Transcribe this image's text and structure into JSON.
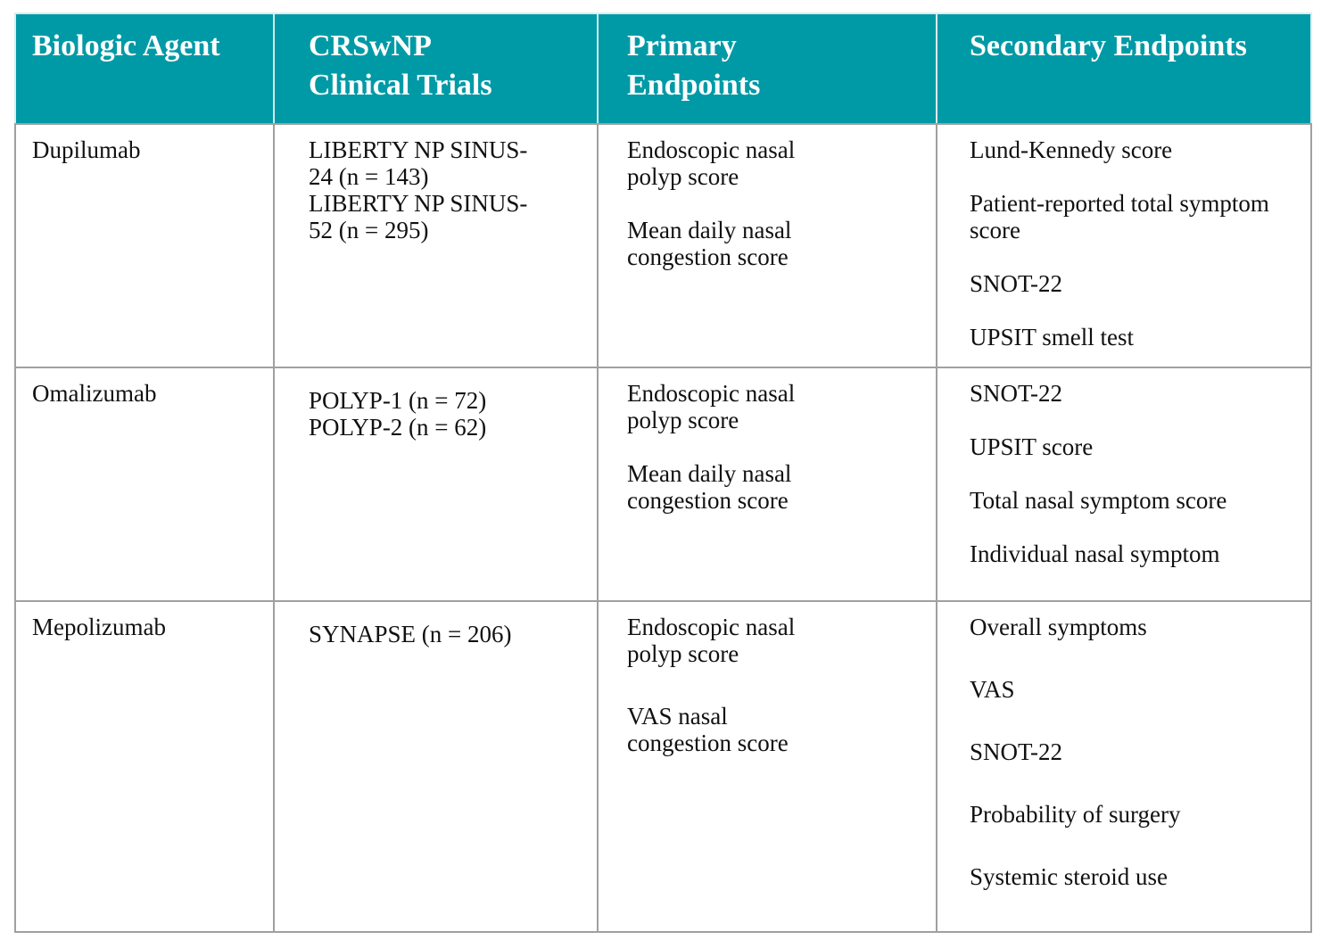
{
  "table": {
    "header": [
      "Biologic Agent",
      "CRSwNP Clinical Trials",
      "Primary Endpoints",
      "Secondary Endpoints"
    ],
    "rows": [
      {
        "agent": "Dupilumab",
        "trials": [
          "LIBERTY NP SINUS-24 (n = 143)",
          "LIBERTY NP SINUS-52 (n = 295)"
        ],
        "primary": [
          "Endoscopic nasal polyp score",
          "Mean daily nasal congestion score"
        ],
        "secondary": [
          "Lund-Kennedy score",
          "Patient-reported total symptom score",
          "SNOT-22",
          "UPSIT smell test"
        ]
      },
      {
        "agent": "Omalizumab",
        "trials": [
          "POLYP-1 (n = 72)",
          "POLYP-2 (n = 62)"
        ],
        "primary": [
          "Endoscopic nasal polyp score",
          "Mean daily nasal congestion score"
        ],
        "secondary": [
          "SNOT-22",
          "UPSIT score",
          "Total nasal symptom score",
          "Individual nasal symptom"
        ]
      },
      {
        "agent": "Mepolizumab",
        "trials": [
          "SYNAPSE (n = 206)"
        ],
        "primary": [
          "Endoscopic nasal polyp score",
          "VAS nasal congestion score"
        ],
        "secondary": [
          "Overall symptoms",
          "VAS",
          "SNOT-22",
          "Probability of surgery",
          "Systemic steroid use"
        ]
      }
    ]
  }
}
